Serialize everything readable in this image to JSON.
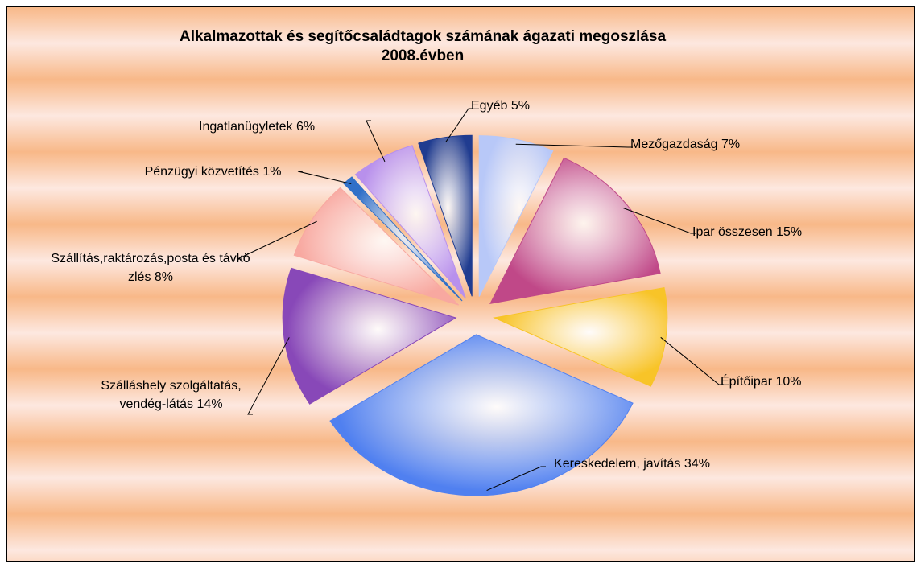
{
  "chart_data": {
    "type": "pie",
    "title": "Alkalmazottak és segítőcsaládtagok számának ágazati megoszlása 2008.évben",
    "categories": [
      "Mezőgazdaság",
      "Ipar összesen",
      "Építőipar",
      "Kereskedelem, javítás",
      "Szálláshely szolgáltatás, vendég-látás",
      "Szállítás,raktározás,posta és távközlés",
      "Pénzügyi közvetítés",
      "Ingatlanügyletek",
      "Egyéb"
    ],
    "values": [
      7,
      15,
      10,
      34,
      14,
      8,
      1,
      6,
      5
    ],
    "value_labels": [
      "7%",
      "15%",
      "10%",
      "34%",
      "14%",
      "8%",
      "1%",
      "6%",
      "5%"
    ],
    "colors": [
      "#b8c8f8",
      "#c04888",
      "#f8c428",
      "#5080f0",
      "#8848b8",
      "#f8a8a0",
      "#3070c8",
      "#b890ec",
      "#203c90"
    ]
  }
}
